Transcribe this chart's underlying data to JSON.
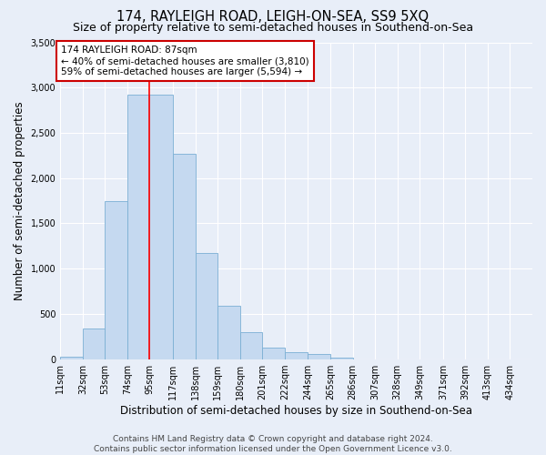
{
  "title": "174, RAYLEIGH ROAD, LEIGH-ON-SEA, SS9 5XQ",
  "subtitle": "Size of property relative to semi-detached houses in Southend-on-Sea",
  "xlabel": "Distribution of semi-detached houses by size in Southend-on-Sea",
  "ylabel": "Number of semi-detached properties",
  "categories": [
    "11sqm",
    "32sqm",
    "53sqm",
    "74sqm",
    "95sqm",
    "117sqm",
    "138sqm",
    "159sqm",
    "180sqm",
    "201sqm",
    "222sqm",
    "244sqm",
    "265sqm",
    "286sqm",
    "307sqm",
    "328sqm",
    "349sqm",
    "371sqm",
    "392sqm",
    "413sqm",
    "434sqm"
  ],
  "values": [
    30,
    340,
    1750,
    2920,
    2920,
    2270,
    1170,
    590,
    300,
    130,
    75,
    55,
    20,
    0,
    0,
    0,
    0,
    0,
    0,
    0,
    0
  ],
  "bar_color": "#c5d9f0",
  "bar_edge_color": "#7bafd4",
  "ylim": [
    0,
    3500
  ],
  "yticks": [
    0,
    500,
    1000,
    1500,
    2000,
    2500,
    3000,
    3500
  ],
  "annotation_text": "174 RAYLEIGH ROAD: 87sqm\n← 40% of semi-detached houses are smaller (3,810)\n59% of semi-detached houses are larger (5,594) →",
  "annotation_box_color": "#ffffff",
  "annotation_box_edge_color": "#cc0000",
  "footer_line1": "Contains HM Land Registry data © Crown copyright and database right 2024.",
  "footer_line2": "Contains public sector information licensed under the Open Government Licence v3.0.",
  "background_color": "#e8eef8",
  "plot_background_color": "#e8eef8",
  "grid_color": "#ffffff",
  "title_fontsize": 10.5,
  "subtitle_fontsize": 9,
  "tick_fontsize": 7,
  "ylabel_fontsize": 8.5,
  "xlabel_fontsize": 8.5,
  "footer_fontsize": 6.5,
  "red_line_x": 95,
  "bin_edges": [
    11,
    32,
    53,
    74,
    95,
    117,
    138,
    159,
    180,
    201,
    222,
    244,
    265,
    286,
    307,
    328,
    349,
    371,
    392,
    413,
    434,
    455
  ]
}
